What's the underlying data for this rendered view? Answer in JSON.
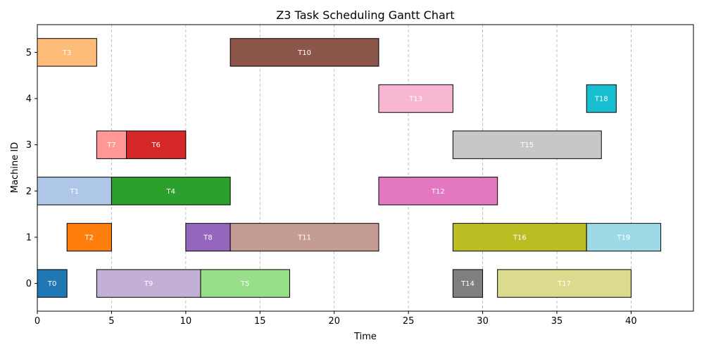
{
  "chart_data": {
    "type": "gantt",
    "title": "Z3 Task Scheduling Gantt Chart",
    "xlabel": "Time",
    "ylabel": "Machine ID",
    "xlim": [
      0,
      44.2
    ],
    "ylim": [
      -0.6,
      5.6
    ],
    "xticks": [
      0,
      5,
      10,
      15,
      20,
      25,
      30,
      35,
      40
    ],
    "yticks": [
      0,
      1,
      2,
      3,
      4,
      5
    ],
    "grid": "x-dashed",
    "tasks": [
      {
        "label": "T0",
        "machine": 0,
        "start": 0,
        "end": 2,
        "color": "#1f77b4"
      },
      {
        "label": "T1",
        "machine": 2,
        "start": 0,
        "end": 5,
        "color": "#aec7e8"
      },
      {
        "label": "T2",
        "machine": 1,
        "start": 2,
        "end": 5,
        "color": "#ff7f0e"
      },
      {
        "label": "T3",
        "machine": 5,
        "start": 0,
        "end": 4,
        "color": "#ffbb78"
      },
      {
        "label": "T4",
        "machine": 2,
        "start": 5,
        "end": 13,
        "color": "#2ca02c"
      },
      {
        "label": "T5",
        "machine": 0,
        "start": 11,
        "end": 17,
        "color": "#98df8a"
      },
      {
        "label": "T6",
        "machine": 3,
        "start": 6,
        "end": 10,
        "color": "#d62728"
      },
      {
        "label": "T7",
        "machine": 3,
        "start": 4,
        "end": 6,
        "color": "#ff9896"
      },
      {
        "label": "T8",
        "machine": 1,
        "start": 10,
        "end": 13,
        "color": "#9467bd"
      },
      {
        "label": "T9",
        "machine": 0,
        "start": 4,
        "end": 11,
        "color": "#c5b0d5"
      },
      {
        "label": "T10",
        "machine": 5,
        "start": 13,
        "end": 23,
        "color": "#8c564b"
      },
      {
        "label": "T11",
        "machine": 1,
        "start": 13,
        "end": 23,
        "color": "#c49c94"
      },
      {
        "label": "T12",
        "machine": 2,
        "start": 23,
        "end": 31,
        "color": "#e377c2"
      },
      {
        "label": "T13",
        "machine": 4,
        "start": 23,
        "end": 28,
        "color": "#f7b6d2"
      },
      {
        "label": "T14",
        "machine": 0,
        "start": 28,
        "end": 30,
        "color": "#7f7f7f"
      },
      {
        "label": "T15",
        "machine": 3,
        "start": 28,
        "end": 38,
        "color": "#c7c7c7"
      },
      {
        "label": "T16",
        "machine": 1,
        "start": 28,
        "end": 37,
        "color": "#bcbd22"
      },
      {
        "label": "T17",
        "machine": 0,
        "start": 31,
        "end": 40,
        "color": "#dbdb8d"
      },
      {
        "label": "T18",
        "machine": 4,
        "start": 37,
        "end": 39,
        "color": "#17becf"
      },
      {
        "label": "T19",
        "machine": 1,
        "start": 37,
        "end": 42,
        "color": "#9edae5"
      }
    ]
  }
}
